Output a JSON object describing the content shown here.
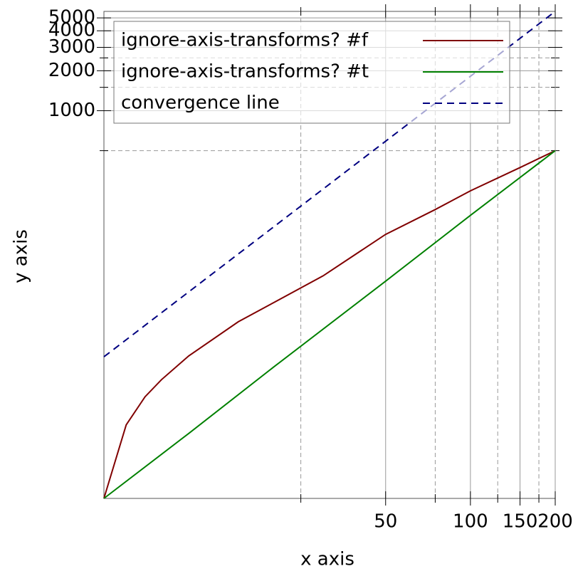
{
  "chart_data": {
    "type": "line",
    "x_label": "x axis",
    "y_label": "y axis",
    "x_scale": "log",
    "y_scale": "log",
    "xlim": [
      5,
      200
    ],
    "ylim": [
      1.2,
      5600
    ],
    "xticks": [
      50,
      100,
      150,
      200
    ],
    "yticks": [
      1000,
      2000,
      3000,
      4000,
      5000
    ],
    "x_minor_ticks": [
      25,
      75,
      125,
      175
    ],
    "y_minor_ticks": [
      500,
      1500,
      2500
    ],
    "grid": true,
    "legend": "top-left",
    "series": [
      {
        "name": "ignore-axis-transforms? #f",
        "color": "#800000",
        "dash": false,
        "x": [
          5,
          6,
          7,
          8,
          10,
          15,
          20,
          30,
          50,
          75,
          100,
          150,
          200
        ],
        "values": [
          1.2,
          4.3,
          7.0,
          9.4,
          14.2,
          25.7,
          35.8,
          57,
          117,
          180,
          249,
          373,
          500
        ]
      },
      {
        "name": "ignore-axis-transforms? #t",
        "color": "#008000",
        "dash": false,
        "x": [
          5,
          10,
          20,
          50,
          100,
          200
        ],
        "values": [
          1.2,
          3.7,
          11.7,
          52,
          163,
          500
        ]
      },
      {
        "name": "convergence line",
        "color": "#000080",
        "dash": true,
        "x": [
          5,
          200
        ],
        "values": [
          14,
          5600
        ]
      }
    ]
  }
}
